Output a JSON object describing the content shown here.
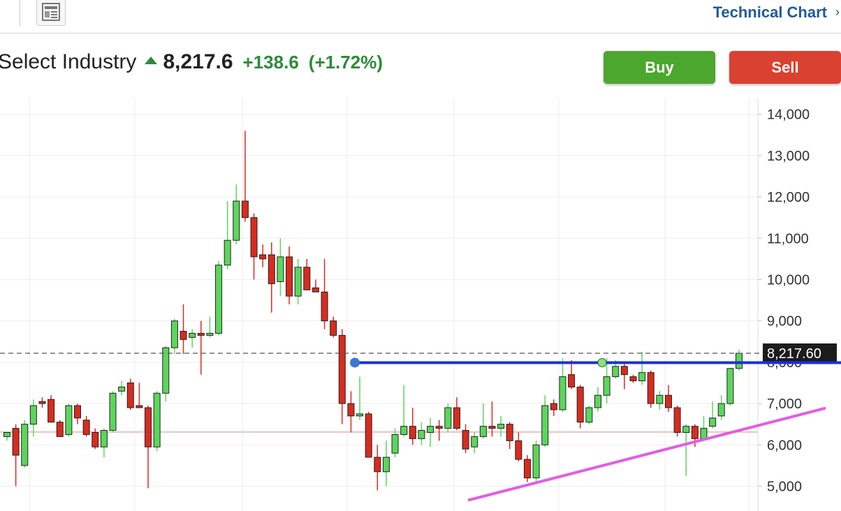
{
  "header": {
    "link": "Technical Chart"
  },
  "quote": {
    "name": "Select Industry",
    "price": "8,217.6",
    "change": "+138.6",
    "change_pct": "(+1.72%)"
  },
  "buttons": {
    "buy": "Buy",
    "sell": "Sell"
  },
  "chart_data": {
    "type": "candlestick",
    "open": [
      6200,
      6400,
      5500,
      6500,
      7050,
      7100,
      6550,
      6250,
      6950,
      6600,
      6300,
      5950,
      6350,
      7300,
      7500,
      6950,
      6900,
      5950,
      7250,
      8350,
      8750,
      8600,
      8700,
      8650,
      8700,
      10350,
      10950,
      11900,
      11500,
      10600,
      10600,
      9950,
      10550,
      9600,
      10300,
      9800,
      9700,
      9000,
      8650,
      7000,
      6700,
      6750,
      5700,
      5350,
      5800,
      6250,
      6450,
      6150,
      6300,
      6450,
      6400,
      6900,
      6350,
      5950,
      6200,
      6450,
      6400,
      6500,
      6100,
      5650,
      5200,
      6000,
      7000,
      6850,
      7700,
      7400,
      6550,
      6900,
      7200,
      7650,
      7900,
      7650,
      7550,
      7750,
      7000,
      7200,
      6900,
      6300,
      6450,
      6150,
      6450,
      6700,
      7000,
      7850
    ],
    "high": [
      6300,
      6500,
      6600,
      7100,
      7150,
      7200,
      6600,
      7000,
      7000,
      6700,
      6400,
      6400,
      7300,
      7550,
      7600,
      7500,
      6950,
      7300,
      8400,
      9050,
      9400,
      8800,
      9000,
      9100,
      10450,
      11900,
      12300,
      13600,
      11600,
      10850,
      10900,
      11000,
      10800,
      10500,
      10500,
      10000,
      10500,
      9100,
      8800,
      7300,
      7650,
      6800,
      6000,
      6100,
      6400,
      7450,
      6900,
      6550,
      6650,
      6600,
      7000,
      7150,
      6500,
      6300,
      7000,
      7050,
      6700,
      6550,
      6300,
      5750,
      6100,
      7200,
      7100,
      8100,
      8050,
      7450,
      6950,
      7400,
      8100,
      8050,
      8000,
      7700,
      8250,
      7800,
      7300,
      7450,
      6950,
      6500,
      6500,
      6700,
      7050,
      7200,
      7850,
      8300
    ],
    "low": [
      6100,
      5000,
      5450,
      6200,
      6900,
      6550,
      6200,
      6200,
      6500,
      6200,
      5900,
      5700,
      6300,
      7200,
      6850,
      6900,
      4950,
      5850,
      7050,
      8200,
      8200,
      8350,
      7700,
      8600,
      8650,
      10250,
      10850,
      11400,
      10000,
      10300,
      9200,
      9600,
      9400,
      9400,
      9750,
      9750,
      8800,
      8600,
      6500,
      6300,
      6600,
      5700,
      4900,
      5000,
      5700,
      6200,
      6000,
      6000,
      5950,
      6100,
      6300,
      6350,
      5800,
      5800,
      6150,
      6200,
      6200,
      5900,
      5600,
      5100,
      5100,
      5950,
      6700,
      6800,
      7350,
      6400,
      6500,
      6800,
      7000,
      7600,
      7350,
      7500,
      7450,
      6900,
      6850,
      6800,
      6200,
      5250,
      5950,
      6100,
      6400,
      6600,
      6950,
      7800
    ],
    "close": [
      6300,
      5750,
      6500,
      6950,
      7000,
      6550,
      6200,
      6950,
      6650,
      6250,
      5950,
      6350,
      7250,
      7400,
      6900,
      6900,
      5950,
      7250,
      8350,
      9000,
      8550,
      8700,
      8650,
      8700,
      10350,
      10950,
      11900,
      11500,
      10550,
      10500,
      9900,
      10550,
      9600,
      10300,
      9750,
      9700,
      9000,
      8650,
      7000,
      6700,
      6750,
      5700,
      5350,
      5700,
      6250,
      6450,
      6150,
      6350,
      6450,
      6400,
      6900,
      6400,
      5900,
      6200,
      6450,
      6400,
      6500,
      6100,
      5650,
      5200,
      6000,
      6950,
      6850,
      7650,
      7400,
      6550,
      6900,
      7200,
      7650,
      7900,
      7700,
      7550,
      7750,
      7000,
      7200,
      6900,
      6300,
      6450,
      6150,
      6400,
      6650,
      7000,
      7850,
      8217.6
    ],
    "up_color": "#5cd65c",
    "down_color": "#d92b1f",
    "ylim": [
      4400,
      14400
    ],
    "yticks": [
      {
        "value": 5000,
        "label": "5,000"
      },
      {
        "value": 6000,
        "label": "6,000"
      },
      {
        "value": 7000,
        "label": "7,000"
      },
      {
        "value": 8000,
        "label": "8,000"
      },
      {
        "value": 9000,
        "label": "9,000"
      },
      {
        "value": 10000,
        "label": "10,000"
      },
      {
        "value": 11000,
        "label": "11,000"
      },
      {
        "value": 12000,
        "label": "12,000"
      },
      {
        "value": 13000,
        "label": "13,000"
      },
      {
        "value": 14000,
        "label": "14,000"
      }
    ],
    "grid": true,
    "last_price": {
      "value": 8217.6,
      "label": "8,217.60"
    },
    "reference_line": 6310,
    "resistance_line": 7990,
    "trend_line": {
      "start": 4660,
      "end": 6890
    }
  }
}
